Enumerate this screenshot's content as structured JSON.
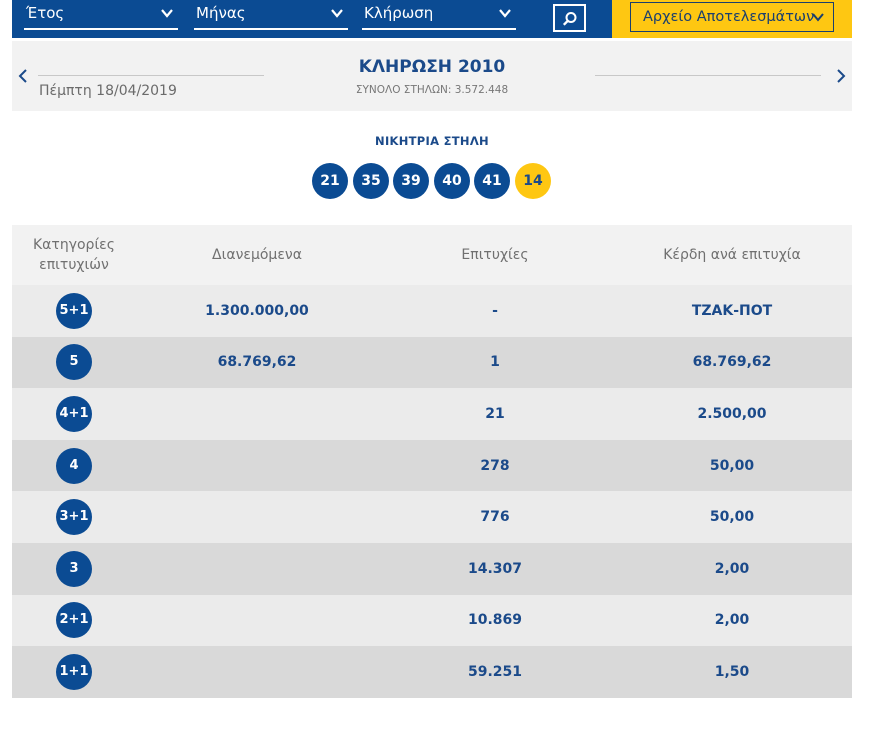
{
  "filters": {
    "year_label": "Έτος",
    "month_label": "Μήνας",
    "draw_label": "Κλήρωση"
  },
  "archive": {
    "label": "Αρχείο Αποτελεσμάτων"
  },
  "draw": {
    "date": "Πέμπτη 18/04/2019",
    "title": "ΚΛΗΡΩΣΗ 2010",
    "total_columns": "ΣΥΝΟΛΟ ΣΤΗΛΩΝ: 3.572.448"
  },
  "winning": {
    "label": "ΝΙΚΗΤΡΙΑ ΣΤΗΛΗ",
    "numbers": [
      "21",
      "35",
      "39",
      "40",
      "41"
    ],
    "joker": "14"
  },
  "table": {
    "headers": {
      "categories_line1": "Κατηγορίες",
      "categories_line2": "επιτυχιών",
      "distributed": "Διανεμόμενα",
      "winners": "Επιτυχίες",
      "prize": "Κέρδη ανά επιτυχία"
    },
    "rows": [
      {
        "category": "5+1",
        "distributed": "1.300.000,00",
        "winners": "-",
        "prize": "ΤΖΑΚ-ΠΟΤ"
      },
      {
        "category": "5",
        "distributed": "68.769,62",
        "winners": "1",
        "prize": "68.769,62"
      },
      {
        "category": "4+1",
        "distributed": "",
        "winners": "21",
        "prize": "2.500,00"
      },
      {
        "category": "4",
        "distributed": "",
        "winners": "278",
        "prize": "50,00"
      },
      {
        "category": "3+1",
        "distributed": "",
        "winners": "776",
        "prize": "50,00"
      },
      {
        "category": "3",
        "distributed": "",
        "winners": "14.307",
        "prize": "2,00"
      },
      {
        "category": "2+1",
        "distributed": "",
        "winners": "10.869",
        "prize": "2,00"
      },
      {
        "category": "1+1",
        "distributed": "",
        "winners": "59.251",
        "prize": "1,50"
      }
    ]
  },
  "colors": {
    "brand_blue": "#0b4b93",
    "brand_yellow": "#fec712"
  },
  "icons": {
    "dropdown": "chevron-down-icon",
    "search": "search-icon",
    "prev": "chevron-left-icon",
    "next": "chevron-right-icon"
  }
}
